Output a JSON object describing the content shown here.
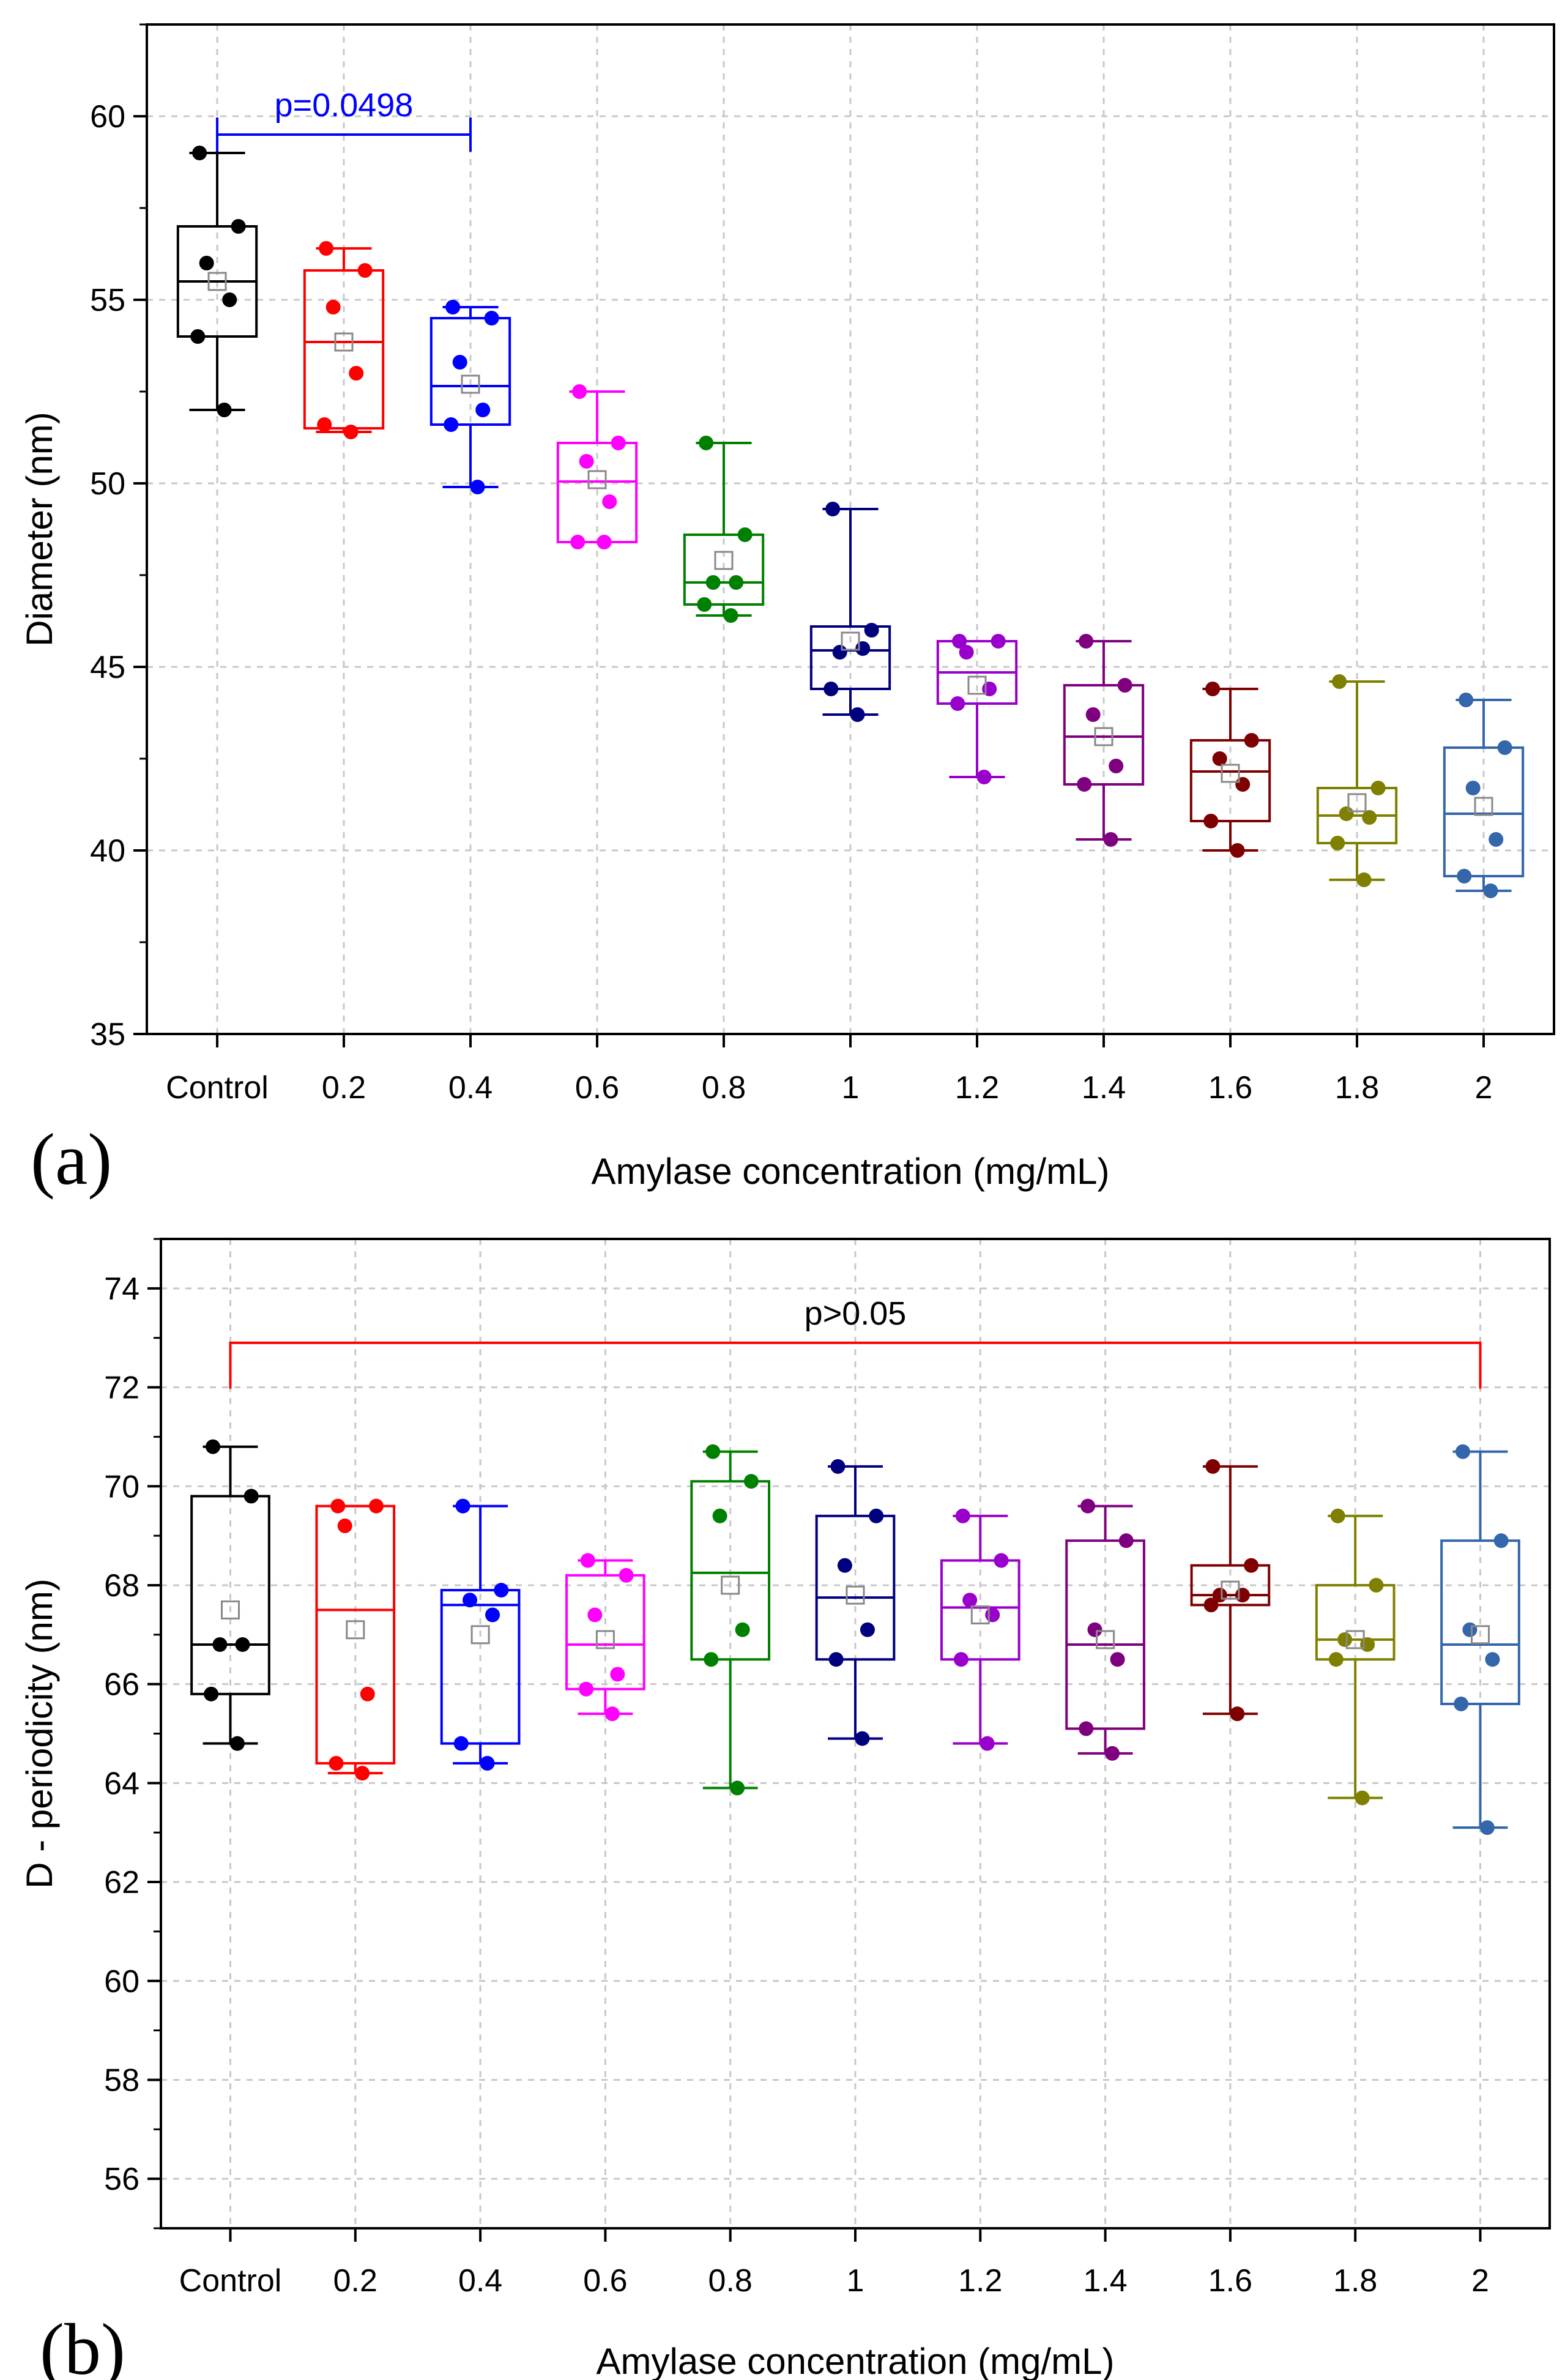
{
  "chart_data": [
    {
      "type": "box",
      "panel_label": "(a)",
      "xlabel": "Amylase concentration (mg/mL)",
      "ylabel": "Diameter (nm)",
      "ylim": [
        35,
        62.5
      ],
      "yticks": [
        35,
        40,
        45,
        50,
        55,
        60
      ],
      "grid": true,
      "categories": [
        "Control",
        "0.2",
        "0.4",
        "0.6",
        "0.8",
        "1",
        "1.2",
        "1.4",
        "1.6",
        "1.8",
        "2"
      ],
      "colors": [
        "#000000",
        "#ff0000",
        "#0000ff",
        "#ff00ff",
        "#008000",
        "#00007f",
        "#9900cc",
        "#7f007f",
        "#7f0000",
        "#808000",
        "#3366aa"
      ],
      "boxes": [
        {
          "q1": 54.0,
          "median": 55.5,
          "q3": 57.0,
          "min": 52.0,
          "max": 59.0,
          "mean": 55.5,
          "points": [
            59.0,
            57.0,
            56.0,
            55.0,
            54.0,
            52.0
          ]
        },
        {
          "q1": 51.5,
          "median": 53.85,
          "q3": 55.8,
          "min": 51.4,
          "max": 56.4,
          "mean": 53.85,
          "points": [
            56.4,
            55.8,
            54.8,
            53.0,
            51.6,
            51.4
          ]
        },
        {
          "q1": 51.6,
          "median": 52.65,
          "q3": 54.5,
          "min": 49.9,
          "max": 54.8,
          "mean": 52.7,
          "points": [
            54.8,
            54.5,
            53.3,
            52.0,
            51.6,
            49.9
          ]
        },
        {
          "q1": 48.4,
          "median": 50.05,
          "q3": 51.1,
          "min": 48.4,
          "max": 52.5,
          "mean": 50.1,
          "points": [
            52.5,
            51.1,
            50.6,
            49.5,
            48.4,
            48.4
          ]
        },
        {
          "q1": 46.7,
          "median": 47.3,
          "q3": 48.6,
          "min": 46.4,
          "max": 51.1,
          "mean": 47.9,
          "points": [
            51.1,
            48.6,
            47.3,
            47.3,
            46.7,
            46.4
          ]
        },
        {
          "q1": 44.4,
          "median": 45.45,
          "q3": 46.1,
          "min": 43.7,
          "max": 49.3,
          "mean": 45.7,
          "points": [
            49.3,
            46.0,
            45.4,
            45.5,
            44.4,
            43.7
          ]
        },
        {
          "q1": 44.0,
          "median": 44.85,
          "q3": 45.7,
          "min": 42.0,
          "max": 45.7,
          "mean": 44.5,
          "points": [
            45.7,
            45.7,
            45.4,
            44.4,
            44.0,
            42.0
          ]
        },
        {
          "q1": 41.8,
          "median": 43.1,
          "q3": 44.5,
          "min": 40.3,
          "max": 45.7,
          "mean": 43.1,
          "points": [
            45.7,
            44.5,
            43.7,
            42.3,
            41.8,
            40.3
          ]
        },
        {
          "q1": 40.8,
          "median": 42.15,
          "q3": 43.0,
          "min": 40.0,
          "max": 44.4,
          "mean": 42.1,
          "points": [
            44.4,
            43.0,
            42.5,
            41.8,
            40.8,
            40.0
          ]
        },
        {
          "q1": 40.2,
          "median": 40.95,
          "q3": 41.7,
          "min": 39.2,
          "max": 44.6,
          "mean": 41.3,
          "points": [
            44.6,
            41.7,
            41.0,
            40.9,
            40.2,
            39.2
          ]
        },
        {
          "q1": 39.3,
          "median": 41.0,
          "q3": 42.8,
          "min": 38.9,
          "max": 44.1,
          "mean": 41.2,
          "points": [
            44.1,
            42.8,
            41.7,
            40.3,
            39.3,
            38.9
          ]
        }
      ],
      "annotations": [
        {
          "text": "p=0.0498",
          "from": "Control",
          "to": "0.4",
          "y": 59.5,
          "color": "#0000ff"
        }
      ]
    },
    {
      "type": "box",
      "panel_label": "(b)",
      "xlabel": "Amylase concentration (mg/mL)",
      "ylabel": "D - periodicity (nm)",
      "ylim": [
        55,
        75
      ],
      "yticks": [
        56,
        58,
        60,
        62,
        64,
        66,
        68,
        70,
        72,
        74
      ],
      "grid": true,
      "categories": [
        "Control",
        "0.2",
        "0.4",
        "0.6",
        "0.8",
        "1",
        "1.2",
        "1.4",
        "1.6",
        "1.8",
        "2"
      ],
      "colors": [
        "#000000",
        "#ff0000",
        "#0000ff",
        "#ff00ff",
        "#008000",
        "#00007f",
        "#9900cc",
        "#7f007f",
        "#7f0000",
        "#808000",
        "#3366aa"
      ],
      "boxes": [
        {
          "q1": 65.8,
          "median": 66.8,
          "q3": 69.8,
          "min": 64.8,
          "max": 70.8,
          "mean": 67.5,
          "points": [
            70.8,
            69.8,
            66.8,
            66.8,
            65.8,
            64.8
          ]
        },
        {
          "q1": 64.4,
          "median": 67.5,
          "q3": 69.6,
          "min": 64.2,
          "max": 69.6,
          "mean": 67.1,
          "points": [
            69.6,
            69.6,
            69.2,
            65.8,
            64.4,
            64.2
          ]
        },
        {
          "q1": 64.8,
          "median": 67.6,
          "q3": 67.9,
          "min": 64.4,
          "max": 69.6,
          "mean": 67.0,
          "points": [
            69.6,
            67.9,
            67.7,
            67.4,
            64.8,
            64.4
          ]
        },
        {
          "q1": 65.9,
          "median": 66.8,
          "q3": 68.2,
          "min": 65.4,
          "max": 68.5,
          "mean": 66.9,
          "points": [
            68.5,
            68.2,
            67.4,
            66.2,
            65.9,
            65.4
          ]
        },
        {
          "q1": 66.5,
          "median": 68.25,
          "q3": 70.1,
          "min": 63.9,
          "max": 70.7,
          "mean": 68.0,
          "points": [
            70.7,
            70.1,
            69.4,
            67.1,
            66.5,
            63.9
          ]
        },
        {
          "q1": 66.5,
          "median": 67.75,
          "q3": 69.4,
          "min": 64.9,
          "max": 70.4,
          "mean": 67.8,
          "points": [
            70.4,
            69.4,
            68.4,
            67.1,
            66.5,
            64.9
          ]
        },
        {
          "q1": 66.5,
          "median": 67.55,
          "q3": 68.5,
          "min": 64.8,
          "max": 69.4,
          "mean": 67.4,
          "points": [
            69.4,
            68.5,
            67.7,
            67.4,
            66.5,
            64.8
          ]
        },
        {
          "q1": 65.1,
          "median": 66.8,
          "q3": 68.9,
          "min": 64.6,
          "max": 69.6,
          "mean": 66.9,
          "points": [
            69.6,
            68.9,
            67.1,
            66.5,
            65.1,
            64.6
          ]
        },
        {
          "q1": 67.6,
          "median": 67.8,
          "q3": 68.4,
          "min": 65.4,
          "max": 70.4,
          "mean": 67.9,
          "points": [
            70.4,
            68.4,
            67.8,
            67.8,
            67.6,
            65.4
          ]
        },
        {
          "q1": 66.5,
          "median": 66.9,
          "q3": 68.0,
          "min": 63.7,
          "max": 69.4,
          "mean": 66.9,
          "points": [
            69.4,
            68.0,
            66.9,
            66.8,
            66.5,
            63.7
          ]
        },
        {
          "q1": 65.6,
          "median": 66.8,
          "q3": 68.9,
          "min": 63.1,
          "max": 70.7,
          "mean": 67.0,
          "points": [
            70.7,
            68.9,
            67.1,
            66.5,
            65.6,
            63.1
          ]
        }
      ],
      "annotations": [
        {
          "text": "p>0.05",
          "from": "Control",
          "to": "2",
          "y": 72.9,
          "color": "#ff0000"
        }
      ]
    }
  ]
}
